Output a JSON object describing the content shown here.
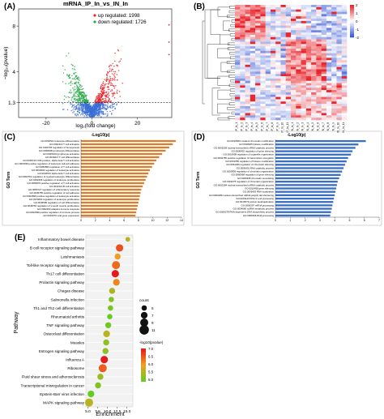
{
  "panel_letters": [
    "(A)",
    "(B)",
    "(C)",
    "(D)",
    "(E)"
  ],
  "chart_data": [
    {
      "panel": "A",
      "type": "scatter",
      "title": "mRNA_IP_In_vs_IN_In",
      "xlabel": "log₂(fold change)",
      "ylabel": "−log₁₀(pvalue)",
      "xlim": [
        -32,
        35
      ],
      "ylim": [
        0,
        9.5
      ],
      "xticks": [
        -20,
        0,
        20
      ],
      "yticks": [
        1.3,
        4,
        8
      ],
      "threshold_y": 1.3,
      "legend": [
        {
          "label": "up regulated: 1998",
          "color": "#e8262d"
        },
        {
          "label": "down regulated: 1726",
          "color": "#2aa84a"
        }
      ],
      "summary": {
        "up_regulated": 1998,
        "down_regulated": 1726
      },
      "colors": {
        "up": "#e8262d",
        "down": "#2aa84a",
        "ns": "#3b6fd6"
      }
    },
    {
      "panel": "B",
      "type": "heatmap",
      "title": "",
      "rows": 50,
      "cols": 22,
      "color_scale": {
        "min": -2,
        "max": 2,
        "ticks": [
          2,
          1,
          0,
          -1,
          -2
        ],
        "low": "#3b5bd6",
        "mid": "#ffffff",
        "high": "#e8262d"
      },
      "col_labels": [
        "IP_In_1",
        "IP_In_2",
        "IP_In_3",
        "IP_In_4",
        "IP_In_5",
        "IP_In_6",
        "IP_In_7",
        "IP_In_8",
        "IP_In_9",
        "IP_In_10",
        "IP_In_11",
        "IN_In_1",
        "IN_In_2",
        "IN_In_3",
        "IN_In_4",
        "IN_In_5",
        "IN_In_6",
        "IN_In_7",
        "IN_In_8",
        "IN_In_9",
        "IN_In_10",
        "IN_In_11"
      ]
    },
    {
      "panel": "C",
      "type": "bar",
      "orientation": "horizontal",
      "title": "-Log10(p)",
      "ylabel": "GO Term",
      "xlim": [
        0,
        14
      ],
      "xticks": [
        0,
        2,
        4,
        6,
        8,
        10,
        12,
        14
      ],
      "color": "#e07b27",
      "categories": [
        "GO:0002521 leukocyte differentiation",
        "GO:0042110 T cell activation",
        "GO:1903706 regulation of hemopoiesis",
        "GO:0030098 lymphocyte differentiation",
        "GO:0046649 lymphocyte activation",
        "GO:0030217 T cell differentiation",
        "GO:0035710 CD4-positive, alpha-beta T cell activation",
        "GO:1903039 positive regulation of leukocyte cell-cell adhesion",
        "GO:0050863 regulation of T cell activation",
        "GO:0002694 regulation of leukocyte activation",
        "GO:0046631 alpha-beta T cell activation",
        "GO:0002761 regulation of myeloid leukocyte differentiation",
        "GO:0032496 regulation of leukocyte proliferation",
        "GO:0050870 positive regulation of T cell activation",
        "GO:0042113 B cell activation",
        "GO:0050727 regulation of inflammatory response",
        "GO:0045785 positive regulation of cell adhesion",
        "GO:0002696 positive regulation of leukocyte activation",
        "GO:0070663 regulation of leukocyte proliferation",
        "GO:0045595 regulation of cell differentiation",
        "GO:0048762 regulation of smooth muscle proliferation",
        "GO:0002250 adaptive immune response",
        "GO:0002699 positive regulation of immune process",
        "GO:0016070 viral gene expression"
      ],
      "values": [
        13.2,
        12.8,
        12.3,
        11.8,
        11.3,
        10.9,
        10.5,
        10.2,
        9.9,
        9.6,
        9.4,
        9.2,
        9.0,
        8.8,
        8.6,
        8.4,
        8.3,
        8.2,
        8.1,
        8.0,
        7.9,
        7.8,
        7.7,
        7.6
      ]
    },
    {
      "panel": "D",
      "type": "bar",
      "orientation": "horizontal",
      "title": "-Log10(p)",
      "ylabel": "GO Term",
      "xlim": [
        0,
        7
      ],
      "xticks": [
        0,
        1,
        2,
        3,
        4,
        5,
        6,
        7
      ],
      "color": "#3a6fc4",
      "categories": [
        "GO:0016569 covalent chromatin modification",
        "GO:0018205 histone modification",
        "GO:0006259 nuclear-transcribed mRNA catabolic process",
        "GO:0006402 regulation of gene silencing",
        "GO:0016999 regulation of organelle organization",
        "GO:0032786 positive regulation of transcription elongation",
        "GO:0031056 regulation of histone modification",
        "GO:0061036 regulation of chromatin silencing",
        "GO:0006401 RNA catabolic process",
        "GO:0000956 regulation of chromatin organization",
        "GO:0060968 regulation of gene silencing",
        "GO:0006338 chromatin remodeling",
        "GO:1902275 regulation of chromatin organization",
        "GO:0000184 nuclear-transcribed mRNA catabolic process",
        "GO:0016458 gene silencing",
        "GO:0006403 RNA localization",
        "GO:0000289 nuclear-transcribed mRNA poly(A) tail shortening",
        "GO:0031123 RNA 3'-end processing",
        "GO:0016579 protein deubiquitination",
        "GO:0006397 mRNA processing",
        "GO:0034660 ncRNA metabolic process",
        "GO:0006278 RNA-dependent DNA biosynthetic process",
        "GO:0006396 RNA processing"
      ],
      "values": [
        6.1,
        5.6,
        5.4,
        5.2,
        5.1,
        4.9,
        4.8,
        4.7,
        4.6,
        4.5,
        4.4,
        4.3,
        4.2,
        4.15,
        4.1,
        4.05,
        4.0,
        3.95,
        3.9,
        3.85,
        3.8,
        3.75,
        3.7
      ]
    },
    {
      "panel": "E",
      "type": "scatter",
      "subtype": "bubble",
      "xlabel": "Enrichment",
      "ylabel": "Pathway",
      "xlim": [
        4.5,
        16.5
      ],
      "xticks": [
        5.0,
        7.5,
        10.0,
        12.5,
        15.0
      ],
      "categories": [
        "Inflammatory bowel disease",
        "B cell receptor signaling pathway",
        "Leishmaniasis",
        "Toll-like receptor signaling pathway",
        "Th17 cell differentiation",
        "Prolactin signaling pathway",
        "Chagas disease",
        "Salmonella infection",
        "Th1 and Th2 cell differentiation",
        "Rheumatoid arthritis",
        "TNF signaling pathway",
        "Osteoclast differentiation",
        "Measles",
        "Estrogen signaling pathway",
        "Influenza A",
        "Ribosome",
        "Fluid shear stress and atherosclerosis",
        "Transcriptional misregulation in cancer",
        "Epstein-Barr virus infection",
        "MAPK signaling pathway"
      ],
      "x": [
        15.2,
        13.1,
        12.6,
        12.2,
        12.0,
        12.3,
        11.2,
        11.0,
        10.8,
        10.6,
        10.2,
        9.8,
        9.7,
        9.5,
        9.2,
        8.8,
        8.2,
        7.6,
        5.8,
        5.3
      ],
      "count": [
        4,
        8,
        6,
        9,
        8,
        7,
        6,
        5,
        5,
        5,
        6,
        7,
        6,
        6,
        8,
        9,
        6,
        6,
        7,
        9
      ],
      "neg_log10_pvalue": [
        5.6,
        6.6,
        6.0,
        6.4,
        7.0,
        6.2,
        5.5,
        5.2,
        5.1,
        5.0,
        5.1,
        5.6,
        5.3,
        5.3,
        7.2,
        6.5,
        5.4,
        5.2,
        4.6,
        5.6
      ],
      "size_legend": {
        "title": "count",
        "values": [
          5,
          7,
          9,
          11
        ]
      },
      "color_legend": {
        "title": "-log10(pvalue)",
        "ticks": [
          7.0,
          6.5,
          6.0,
          5.5,
          5.0
        ],
        "min": 5.0,
        "max": 7.0,
        "high": "#e41a1c",
        "mid": "#f0a020",
        "low": "#66cc22"
      }
    }
  ]
}
